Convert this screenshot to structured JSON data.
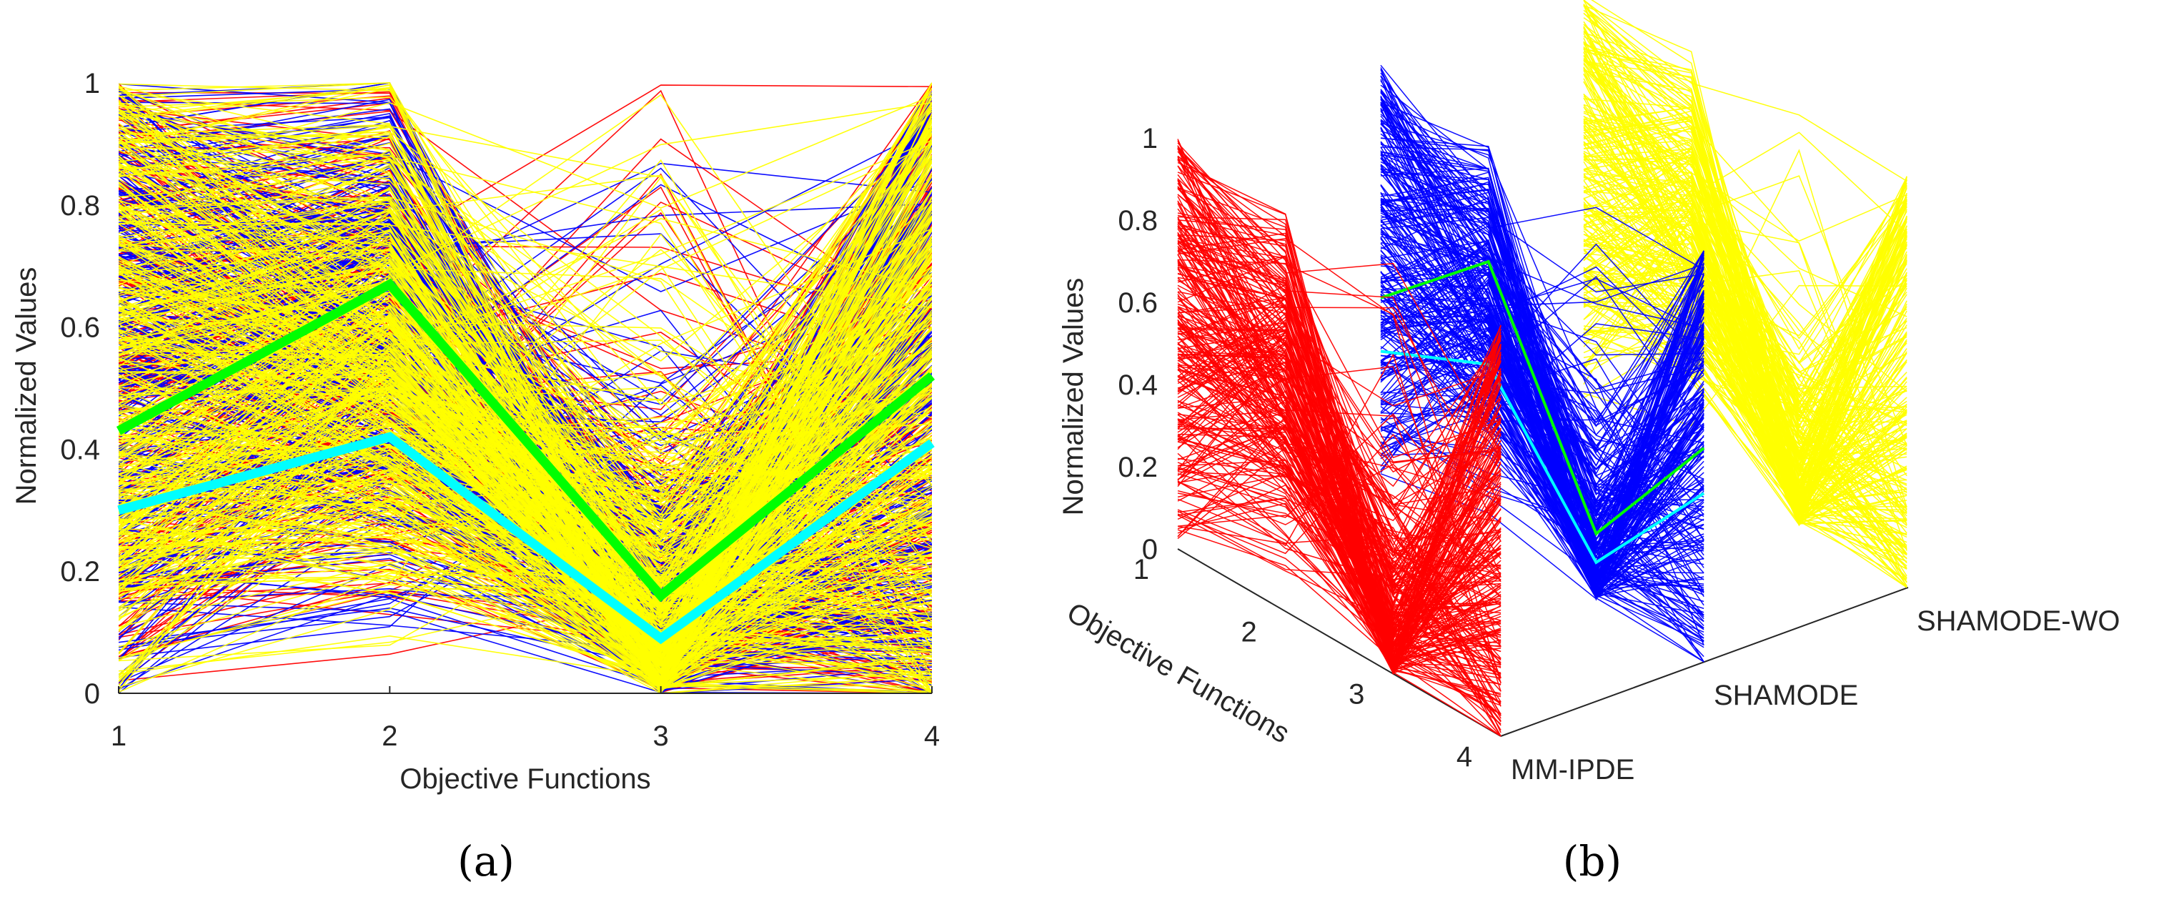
{
  "chart_data": [
    {
      "id": "a",
      "type": "line",
      "subtype": "parallel-coordinates",
      "panel_label": "(a)",
      "xlabel": "Objective Functions",
      "ylabel": "Normalized Values",
      "x": [
        1,
        2,
        3,
        4
      ],
      "xticks": [
        "1",
        "2",
        "3",
        "4"
      ],
      "yticks": [
        "0",
        "0.2",
        "0.4",
        "0.6",
        "0.8",
        "1"
      ],
      "ylim": [
        0,
        1
      ],
      "series": [
        {
          "name": "MM-IPDE",
          "color": "#ff0000",
          "count": 300
        },
        {
          "name": "SHAMODE",
          "color": "#0000ff",
          "count": 300
        },
        {
          "name": "SHAMODE-WO",
          "color": "#ffff00",
          "count": 450
        }
      ],
      "highlight": [
        {
          "name": "green-solution",
          "color": "#00ff00",
          "values": [
            0.43,
            0.67,
            0.16,
            0.52
          ]
        },
        {
          "name": "cyan-solution",
          "color": "#00ffff",
          "values": [
            0.3,
            0.42,
            0.09,
            0.41
          ]
        }
      ]
    },
    {
      "id": "b",
      "type": "line",
      "subtype": "3d-parallel-coordinates",
      "panel_label": "(b)",
      "xlabel": "Objective Functions",
      "ylabel": "Normalized Values",
      "xticks": [
        "1",
        "2",
        "3",
        "4"
      ],
      "yticks": [
        "0",
        "0.2",
        "0.4",
        "0.6",
        "0.8",
        "1"
      ],
      "ylim": [
        0,
        1
      ],
      "algorithms": [
        "MM-IPDE",
        "SHAMODE",
        "SHAMODE-WO"
      ],
      "series": [
        {
          "name": "MM-IPDE",
          "color": "#ff0000",
          "count": 260
        },
        {
          "name": "SHAMODE",
          "color": "#0000ff",
          "count": 260
        },
        {
          "name": "SHAMODE-WO",
          "color": "#ffff00",
          "count": 260
        }
      ],
      "highlight": [
        {
          "name": "green-solution",
          "color": "#00ff00",
          "algorithm": "SHAMODE",
          "values": [
            0.43,
            0.67,
            0.16,
            0.52
          ]
        },
        {
          "name": "cyan-solution",
          "color": "#00ffff",
          "algorithm": "SHAMODE",
          "values": [
            0.3,
            0.42,
            0.09,
            0.41
          ]
        }
      ]
    }
  ]
}
